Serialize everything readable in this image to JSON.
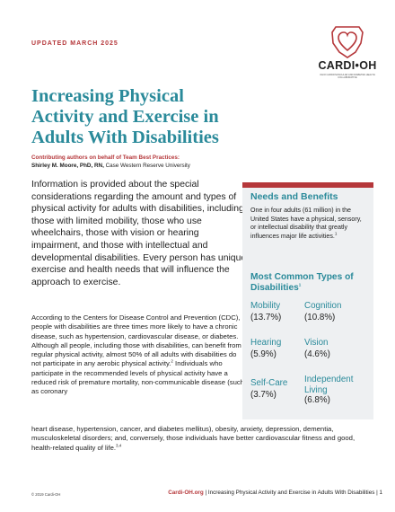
{
  "header": {
    "updated": "UPDATED MARCH 2025",
    "logo_text": "CARDI•OH",
    "logo_sub": "OHIO CARDIOVASCULAR AND DIABETES HEALTH COLLABORATIVE",
    "accent": "#b5373a",
    "teal": "#2a8a9a"
  },
  "title": {
    "line1": "Increasing Physical",
    "line2": "Activity and Exercise in",
    "line3": "Adults With Disabilities"
  },
  "contributors": {
    "label": "Contributing authors on behalf of Team Best Practices:",
    "name": "Shirley M. Moore, PhD, RN,",
    "affiliation": " Case Western Reserve University"
  },
  "intro": "Information is provided about the special considerations regarding the amount and types of physical activity for adults with disabilities, including those with limited mobility, those who use wheelchairs, those with vision or hearing impairment, and those with intellectual and developmental disabilities. Every person has unique exercise and health needs that will influence the approach to exercise.",
  "body": {
    "p1_a": "According to the Centers for Disease Control and Prevention (CDC), people with disabilities are three times more likely to have a chronic disease, such as hypertension, cardiovascular disease, or diabetes. Although all people, including those with disabilities, can benefit from regular physical activity, almost 50% of all adults with disabilities do not participate in any aerobic physical activity.",
    "p1_sup": "2",
    "p1_b": " Individuals who participate in the recommended levels of physical activity have a reduced risk of premature mortality, non-communicable disease (such as coronary",
    "p2": "heart disease, hypertension, cancer, and diabetes mellitus), obesity, anxiety, depression, dementia, musculoskeletal disorders; and, conversely, those individuals have better cardiovascular fitness and good, health-related quality of life.",
    "p2_sup": "3,4"
  },
  "sidebar": {
    "needs_title": "Needs and Benefits",
    "needs_text": "One in four adults (61 million) in the United States have a physical, sensory, or intellectual disability that greatly influences major life activities.",
    "needs_sup": "1",
    "common_title": "Most Common Types of Disabilities",
    "common_sup": "1",
    "stats": [
      {
        "label": "Mobility",
        "value": "(13.7%)"
      },
      {
        "label": "Cognition",
        "value": "(10.8%)"
      },
      {
        "label": "Hearing",
        "value": "(5.9%)"
      },
      {
        "label": "Vision",
        "value": "(4.6%)"
      },
      {
        "label": "Self-Care",
        "value": "(3.7%)"
      },
      {
        "label": "Independent Living",
        "value": "(6.8%)"
      }
    ]
  },
  "footer": {
    "copyright": "© 2019 Cardi-OH",
    "link": "Cardi-OH.org",
    "rest": " | Increasing Physical Activity and Exercise in Adults With Disabilities | 1"
  }
}
